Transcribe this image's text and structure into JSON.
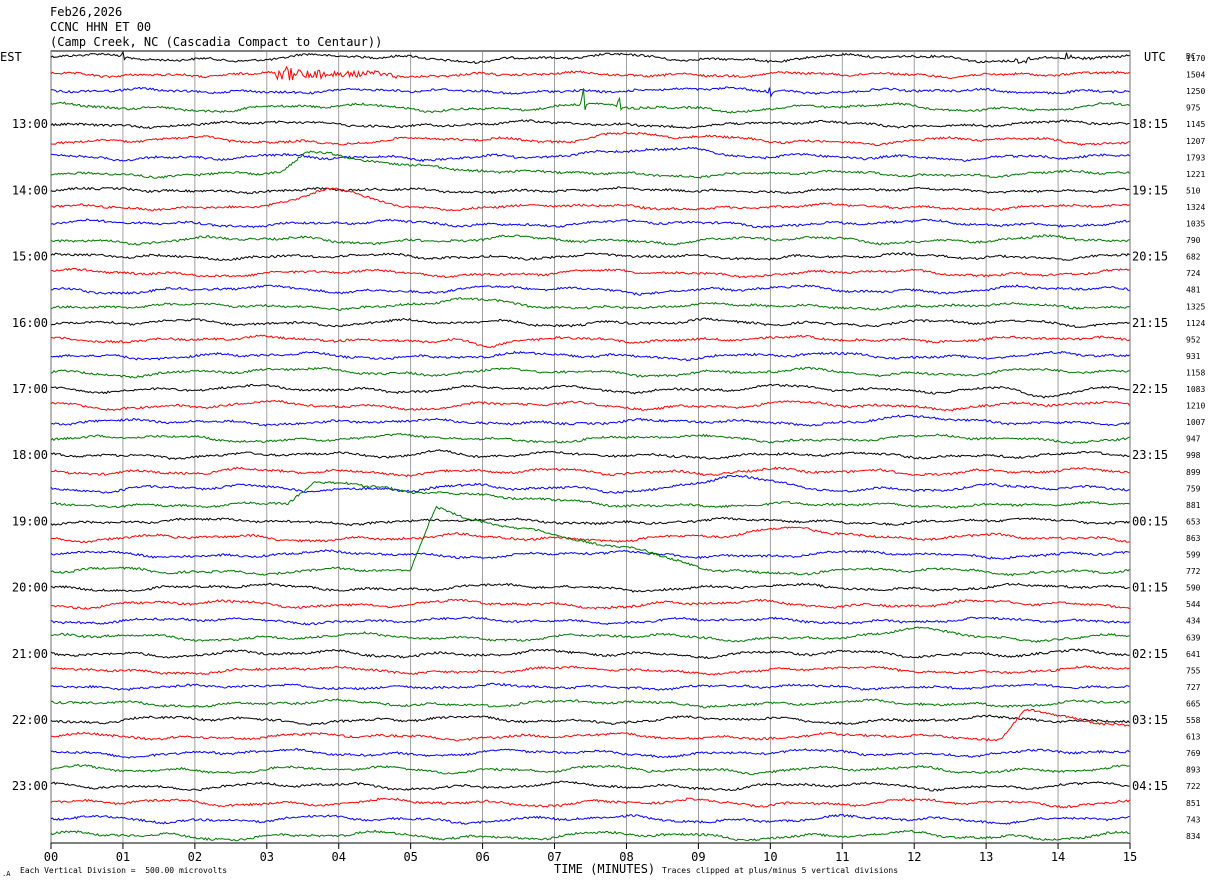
{
  "header": {
    "date": "Feb26,2026",
    "station": "CCNC HHN ET 00",
    "site": "(Camp Creek, NC (Cascadia Compact to Centaur))"
  },
  "chart_data": {
    "type": "line",
    "title": "Feb26,2026 CCNC HHN ET 00 (Camp Creek, NC (Cascadia Compact to Centaur))",
    "left_axis_label": "EST",
    "right_axis_label": "UTC",
    "dc_label": "DC",
    "xlabel": "TIME (MINUTES)",
    "x_ticks": [
      "00",
      "01",
      "02",
      "03",
      "04",
      "05",
      "06",
      "07",
      "08",
      "09",
      "10",
      "11",
      "12",
      "13",
      "14",
      "15"
    ],
    "xlim": [
      0,
      15
    ],
    "grid": true,
    "trace_colors": [
      "#000000",
      "#ff0000",
      "#0000ff",
      "#007700"
    ],
    "trace_count": 48,
    "trace_minutes": 15,
    "est_labels": [
      "13:00",
      "14:00",
      "15:00",
      "16:00",
      "17:00",
      "18:00",
      "19:00",
      "20:00",
      "21:00",
      "22:00",
      "23:00"
    ],
    "utc_labels": [
      "18:15",
      "19:15",
      "20:15",
      "21:15",
      "22:15",
      "23:15",
      "00:15",
      "01:15",
      "02:15",
      "03:15",
      "04:15"
    ],
    "hour_label_rows": [
      4,
      8,
      12,
      16,
      20,
      24,
      28,
      32,
      36,
      40,
      44
    ],
    "dc_values": [
      1170,
      1504,
      1250,
      975,
      1145,
      1207,
      1793,
      1221,
      510,
      1324,
      1035,
      790,
      682,
      724,
      481,
      1325,
      1124,
      952,
      931,
      1158,
      1083,
      1210,
      1007,
      947,
      998,
      899,
      759,
      881,
      653,
      863,
      599,
      772,
      590,
      544,
      434,
      639,
      641,
      755,
      727,
      665,
      558,
      613,
      769,
      893,
      722,
      851,
      743,
      834
    ],
    "scale_note": "Each Vertical Division =  500.00 microvolts",
    "clip_note": "Traces clipped at plus/minus 5 vertical divisions",
    "events": [
      {
        "row": 0,
        "minute": 1.0,
        "type": "spike",
        "amp": 5
      },
      {
        "row": 0,
        "minute": 13.4,
        "type": "burst",
        "amp": 5,
        "duration": 0.3
      },
      {
        "row": 0,
        "minute": 14.1,
        "type": "burst",
        "amp": 5,
        "duration": 0.4
      },
      {
        "row": 1,
        "minute": 3.1,
        "type": "burst",
        "amp": 8,
        "duration": 1.7
      },
      {
        "row": 2,
        "minute": 9.4,
        "type": "bump",
        "amp": -4,
        "duration": 1.0
      },
      {
        "row": 2,
        "minute": 10.0,
        "type": "spike",
        "amp": 6
      },
      {
        "row": 3,
        "minute": 7.4,
        "type": "spike",
        "amp": -16
      },
      {
        "row": 3,
        "minute": 7.9,
        "type": "spike",
        "amp": -8
      },
      {
        "row": 5,
        "minute": 8.0,
        "type": "bump",
        "amp": -8,
        "duration": 2.2
      },
      {
        "row": 6,
        "minute": 8.5,
        "type": "bump",
        "amp": -10,
        "duration": 2.5
      },
      {
        "row": 7,
        "minute": 3.2,
        "type": "step",
        "amp": -20,
        "duration": 3.0
      },
      {
        "row": 9,
        "minute": 4.0,
        "type": "bump",
        "amp": -17,
        "duration": 1.6
      },
      {
        "row": 15,
        "minute": 5.8,
        "type": "bump",
        "amp": -6,
        "duration": 1.6
      },
      {
        "row": 17,
        "minute": 6.1,
        "type": "bump",
        "amp": 9,
        "duration": 0.9
      },
      {
        "row": 19,
        "minute": 3.9,
        "type": "bump",
        "amp": -6,
        "duration": 0.8
      },
      {
        "row": 20,
        "minute": 13.9,
        "type": "bump",
        "amp": 8,
        "duration": 1.4
      },
      {
        "row": 22,
        "minute": 11.9,
        "type": "bump",
        "amp": -7,
        "duration": 1.0
      },
      {
        "row": 24,
        "minute": 5.3,
        "type": "bump",
        "amp": -5,
        "duration": 1.0
      },
      {
        "row": 26,
        "minute": 9.5,
        "type": "bump",
        "amp": -12,
        "duration": 1.4
      },
      {
        "row": 27,
        "minute": 3.3,
        "type": "step",
        "amp": -23,
        "duration": 4.0
      },
      {
        "row": 29,
        "minute": 10.5,
        "type": "bump",
        "amp": -10,
        "duration": 2.2
      },
      {
        "row": 31,
        "minute": 5.0,
        "type": "step",
        "amp": -62,
        "duration": 4.0
      },
      {
        "row": 35,
        "minute": 12.2,
        "type": "bump",
        "amp": -9,
        "duration": 1.2
      },
      {
        "row": 41,
        "minute": 13.2,
        "type": "step",
        "amp": -27,
        "duration": 2.0
      }
    ]
  }
}
